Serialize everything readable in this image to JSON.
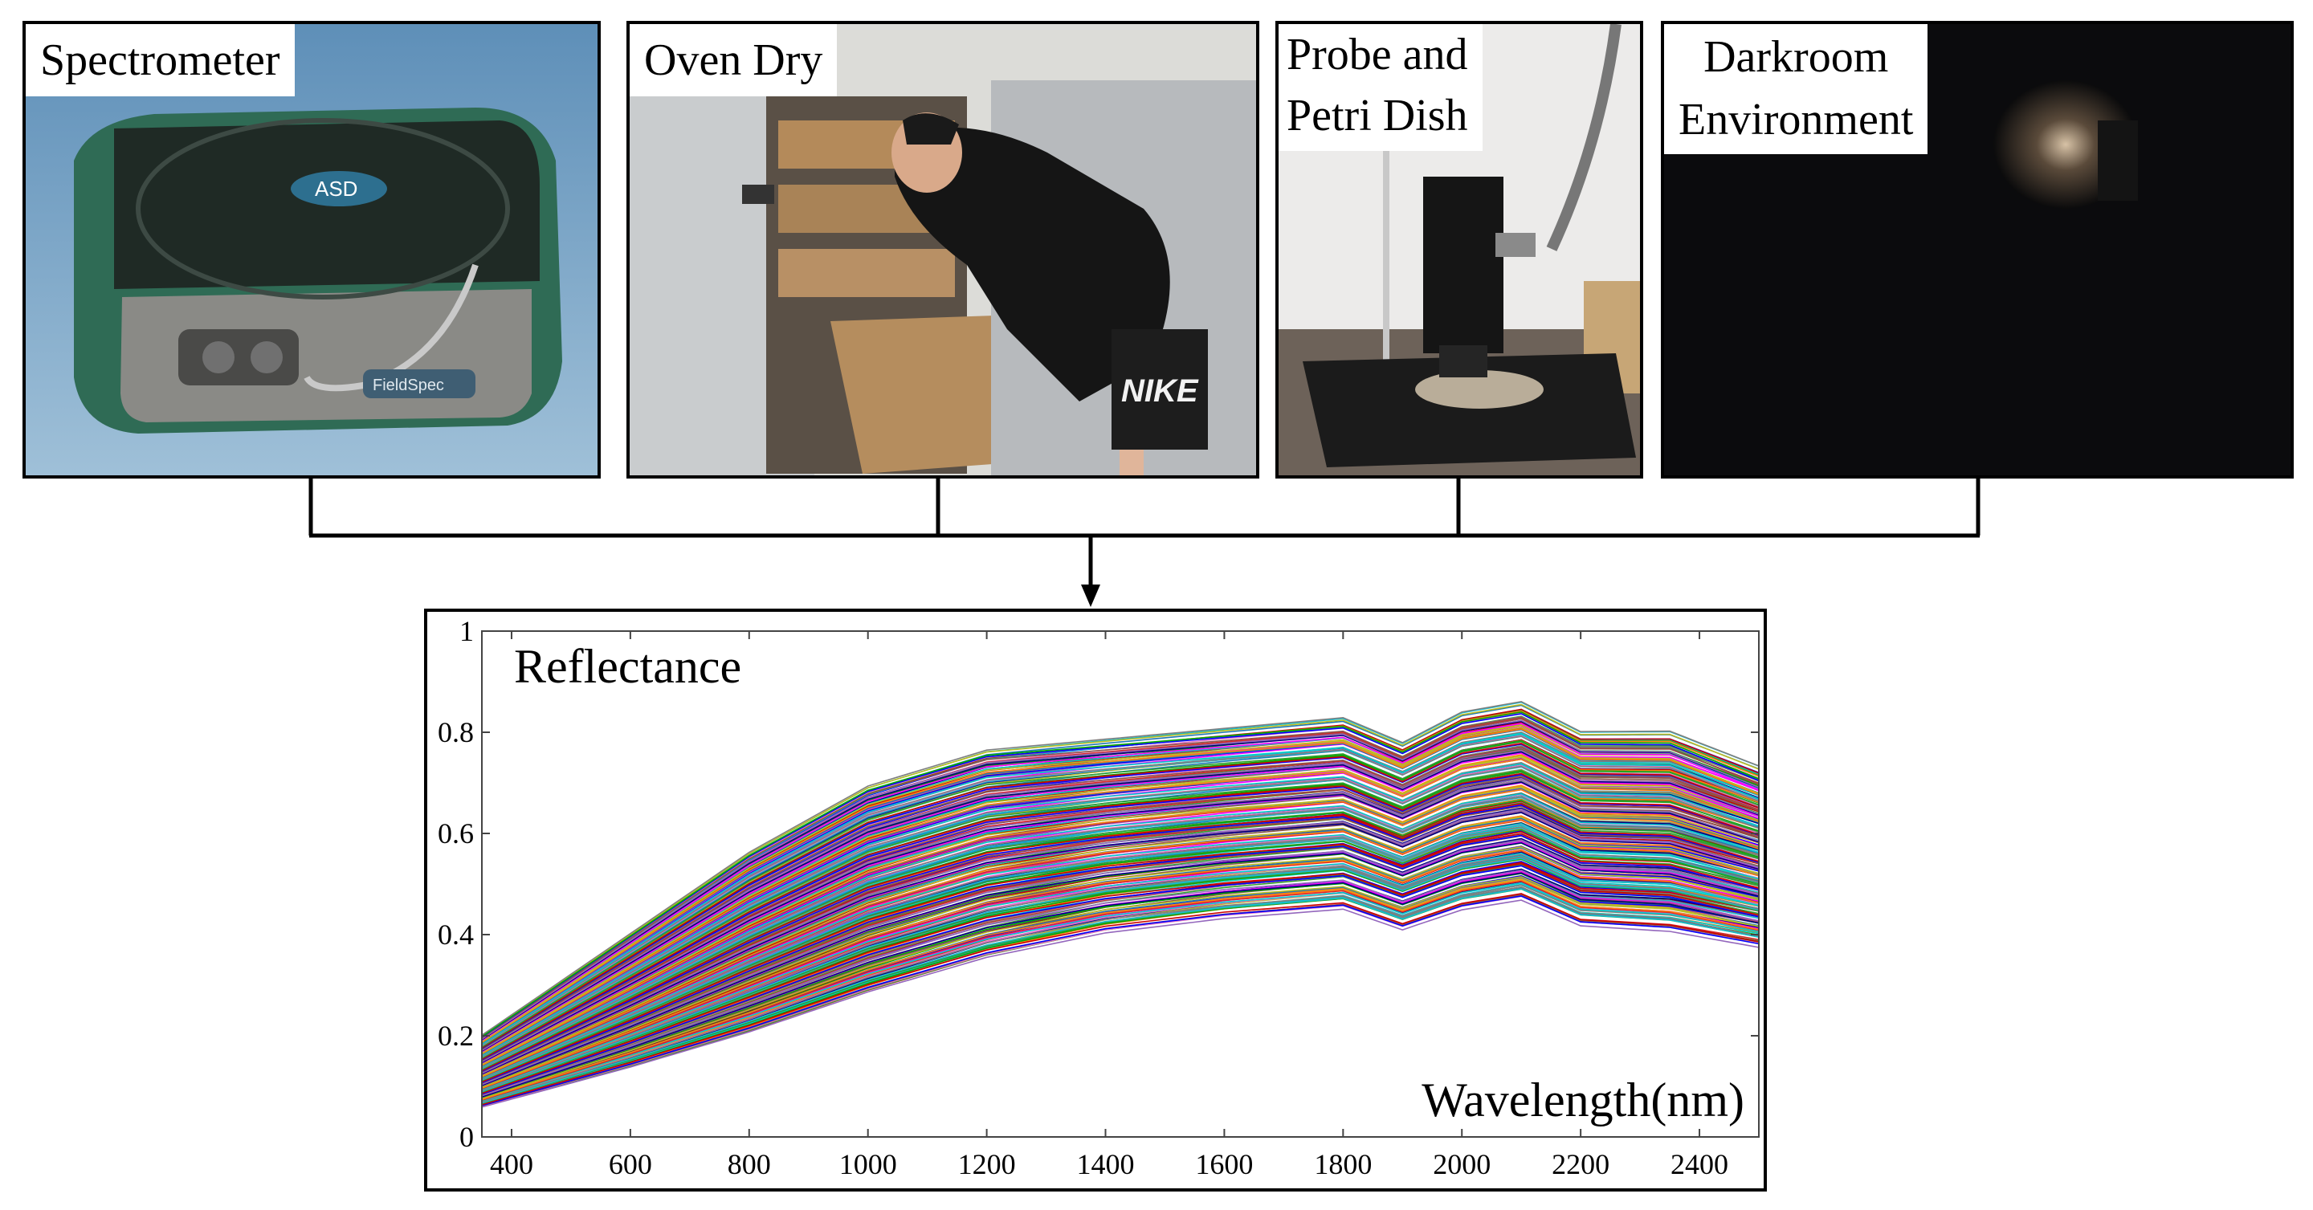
{
  "panels": {
    "spectrometer": {
      "label": "Spectrometer",
      "logo_text": "ASD",
      "device_text": "FieldSpec"
    },
    "oven": {
      "label": "Oven Dry",
      "shorts_text": "NIKE"
    },
    "probe": {
      "label_line1": "Probe and",
      "label_line2": "Petri Dish"
    },
    "darkroom": {
      "label_line1": "Darkroom",
      "label_line2": "Environment"
    }
  },
  "chart_data": {
    "type": "line",
    "title": "Reflectance",
    "xlabel": "Wavelength(nm)",
    "ylabel": "Reflectance",
    "xlim": [
      350,
      2500
    ],
    "ylim": [
      0,
      1
    ],
    "x_ticks": [
      400,
      600,
      800,
      1000,
      1200,
      1400,
      1600,
      1800,
      2000,
      2200,
      2400
    ],
    "y_ticks": [
      {
        "value": 0,
        "label": "0"
      },
      {
        "value": 0.2,
        "label": "0.2"
      },
      {
        "value": 0.4,
        "label": "0.4"
      },
      {
        "value": 0.6,
        "label": "0.6"
      },
      {
        "value": 0.8,
        "label": "0.8"
      },
      {
        "value": 1,
        "label": "1"
      }
    ],
    "series_count": 300,
    "band_min": {
      "x": [
        350,
        600,
        800,
        1000,
        1200,
        1400,
        1600,
        1800,
        1900,
        2000,
        2100,
        2200,
        2350,
        2500
      ],
      "y": [
        0.06,
        0.14,
        0.21,
        0.29,
        0.36,
        0.41,
        0.44,
        0.46,
        0.42,
        0.46,
        0.48,
        0.43,
        0.42,
        0.39
      ]
    },
    "band_max": {
      "x": [
        350,
        600,
        800,
        1000,
        1200,
        1400,
        1600,
        1800,
        1900,
        2000,
        2100,
        2200,
        2350,
        2500
      ],
      "y": [
        0.2,
        0.4,
        0.56,
        0.69,
        0.76,
        0.78,
        0.8,
        0.82,
        0.77,
        0.83,
        0.85,
        0.79,
        0.79,
        0.72
      ]
    },
    "colors": [
      "#d62728",
      "#1f77b4",
      "#2ca02c",
      "#9467bd",
      "#ff7f0e",
      "#17becf",
      "#e377c2",
      "#8c564b",
      "#bcbd22",
      "#7f7f7f",
      "#0000ff",
      "#00aa00",
      "#ff00ff",
      "#00cccc",
      "#cc0000",
      "#000080"
    ]
  }
}
